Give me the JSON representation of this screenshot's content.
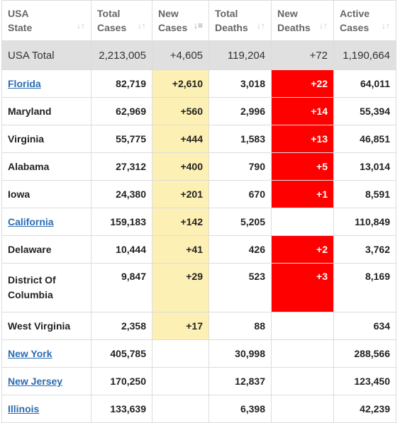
{
  "headers": {
    "state": [
      "USA",
      "State"
    ],
    "total_cases": [
      "Total",
      "Cases"
    ],
    "new_cases": [
      "New",
      "Cases"
    ],
    "total_deaths": [
      "Total",
      "Deaths"
    ],
    "new_deaths": [
      "New",
      "Deaths"
    ],
    "active_cases": [
      "Active",
      "Cases"
    ]
  },
  "total": {
    "label": "USA Total",
    "total_cases": "2,213,005",
    "new_cases": "+4,605",
    "total_deaths": "119,204",
    "new_deaths": "+72",
    "active_cases": "1,190,664"
  },
  "rows": [
    {
      "state": "Florida",
      "link": true,
      "total_cases": "82,719",
      "new_cases": "+2,610",
      "total_deaths": "3,018",
      "new_deaths": "+22",
      "active_cases": "64,011"
    },
    {
      "state": "Maryland",
      "link": false,
      "total_cases": "62,969",
      "new_cases": "+560",
      "total_deaths": "2,996",
      "new_deaths": "+14",
      "active_cases": "55,394"
    },
    {
      "state": "Virginia",
      "link": false,
      "total_cases": "55,775",
      "new_cases": "+444",
      "total_deaths": "1,583",
      "new_deaths": "+13",
      "active_cases": "46,851"
    },
    {
      "state": "Alabama",
      "link": false,
      "total_cases": "27,312",
      "new_cases": "+400",
      "total_deaths": "790",
      "new_deaths": "+5",
      "active_cases": "13,014"
    },
    {
      "state": "Iowa",
      "link": false,
      "total_cases": "24,380",
      "new_cases": "+201",
      "total_deaths": "670",
      "new_deaths": "+1",
      "active_cases": "8,591"
    },
    {
      "state": "California",
      "link": true,
      "total_cases": "159,183",
      "new_cases": "+142",
      "total_deaths": "5,205",
      "new_deaths": "",
      "active_cases": "110,849"
    },
    {
      "state": "Delaware",
      "link": false,
      "total_cases": "10,444",
      "new_cases": "+41",
      "total_deaths": "426",
      "new_deaths": "+2",
      "active_cases": "3,762"
    },
    {
      "state": "District Of Columbia",
      "link": false,
      "total_cases": "9,847",
      "new_cases": "+29",
      "total_deaths": "523",
      "new_deaths": "+3",
      "active_cases": "8,169"
    },
    {
      "state": "West Virginia",
      "link": false,
      "total_cases": "2,358",
      "new_cases": "+17",
      "total_deaths": "88",
      "new_deaths": "",
      "active_cases": "634"
    },
    {
      "state": "New York",
      "link": true,
      "total_cases": "405,785",
      "new_cases": "",
      "total_deaths": "30,998",
      "new_deaths": "",
      "active_cases": "288,566"
    },
    {
      "state": "New Jersey",
      "link": true,
      "total_cases": "170,250",
      "new_cases": "",
      "total_deaths": "12,837",
      "new_deaths": "",
      "active_cases": "123,450"
    },
    {
      "state": "Illinois",
      "link": true,
      "total_cases": "133,639",
      "new_cases": "",
      "total_deaths": "6,398",
      "new_deaths": "",
      "active_cases": "42,239"
    }
  ],
  "icons": {
    "sort": "sort-arrows-icon",
    "sort_active": "sort-desc-icon"
  },
  "colors": {
    "new_cases_highlight": "#fdf0b4",
    "new_deaths_highlight": "#ff0000",
    "link": "#2b6cb0",
    "total_row_bg": "#e0e0e0"
  }
}
